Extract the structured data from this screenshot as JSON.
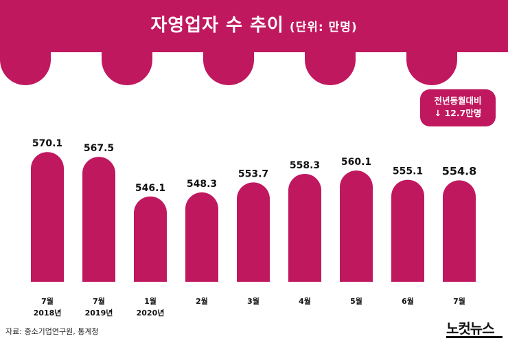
{
  "title": "자영업자 수 추이",
  "title_unit": "(단위: 만명)",
  "yoy_label_line1": "전년동월대비",
  "yoy_label_line2": "↓ 12.7만명",
  "source": "자료: 중소기업연구원, 통계청",
  "brand": "노컷뉴스",
  "colors": {
    "accent": "#c0185f",
    "background": "#ffffff",
    "text": "#111111"
  },
  "chart_data": {
    "type": "bar",
    "categories": [
      "7월 2018년",
      "7월 2019년",
      "1월 2020년",
      "2월",
      "3월",
      "4월",
      "5월",
      "6월",
      "7월"
    ],
    "values": [
      570.1,
      567.5,
      546.1,
      548.3,
      553.7,
      558.3,
      560.1,
      555.1,
      554.8
    ],
    "value_labels": [
      "570.1",
      "567.5",
      "546.1",
      "548.3",
      "553.7",
      "558.3",
      "560.1",
      "555.1",
      "554.8"
    ],
    "xlabels": [
      [
        "7월",
        "2018년"
      ],
      [
        "7월",
        "2019년"
      ],
      [
        "1월",
        "2020년"
      ],
      [
        "2월"
      ],
      [
        "3월"
      ],
      [
        "4월"
      ],
      [
        "5월"
      ],
      [
        "6월"
      ],
      [
        "7월"
      ]
    ],
    "title": "자영업자 수 추이",
    "xlabel": "",
    "ylabel": "",
    "ylim": [
      500,
      575
    ],
    "grid": false,
    "legend": "none"
  }
}
